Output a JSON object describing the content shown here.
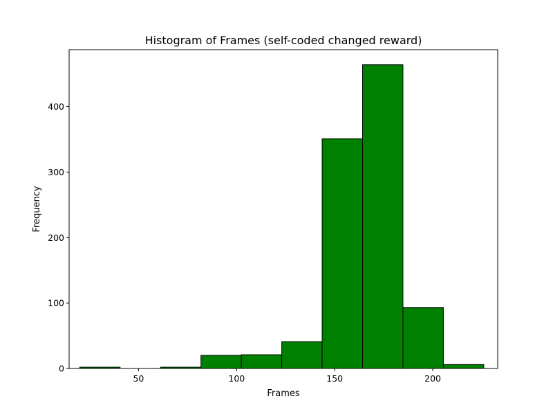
{
  "chart_data": {
    "type": "bar",
    "title": "Histogram of Frames (self-coded changed reward)",
    "xlabel": "Frames",
    "ylabel": "Frequency",
    "xlim": [
      14.6,
      233.1
    ],
    "ylim": [
      0,
      487
    ],
    "x_ticks": [
      50,
      100,
      150,
      200
    ],
    "y_ticks": [
      0,
      100,
      200,
      300,
      400
    ],
    "bins": [
      {
        "start": 20.0,
        "end": 40.6,
        "value": 2
      },
      {
        "start": 40.6,
        "end": 61.2,
        "value": 0
      },
      {
        "start": 61.2,
        "end": 81.8,
        "value": 2
      },
      {
        "start": 81.8,
        "end": 102.4,
        "value": 20
      },
      {
        "start": 102.4,
        "end": 123.0,
        "value": 21
      },
      {
        "start": 123.0,
        "end": 143.6,
        "value": 41
      },
      {
        "start": 143.6,
        "end": 164.2,
        "value": 351
      },
      {
        "start": 164.2,
        "end": 184.8,
        "value": 464
      },
      {
        "start": 184.8,
        "end": 205.4,
        "value": 93
      },
      {
        "start": 205.4,
        "end": 226.0,
        "value": 6
      }
    ],
    "grid": false,
    "colors": {
      "bar_fill": "#008000",
      "bar_edge": "#000000",
      "axis": "#000000"
    }
  }
}
